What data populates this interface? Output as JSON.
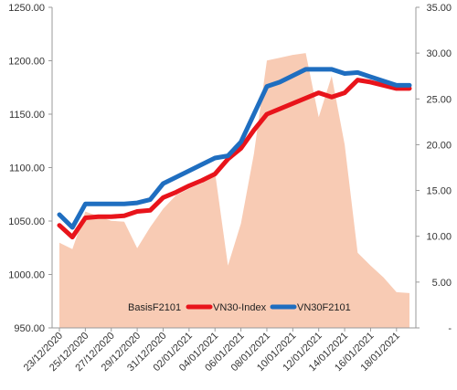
{
  "chart_data": {
    "type": "line",
    "title": "",
    "xlabel": "",
    "ylabel_left": "",
    "ylabel_right": "",
    "x": [
      "23/12/2020",
      "24/12/2020",
      "25/12/2020",
      "26/12/2020",
      "27/12/2020",
      "28/12/2020",
      "29/12/2020",
      "30/12/2020",
      "31/12/2020",
      "01/01/2021",
      "02/01/2021",
      "03/01/2021",
      "04/01/2021",
      "05/01/2021",
      "06/01/2021",
      "07/01/2021",
      "08/01/2021",
      "09/01/2021",
      "10/01/2021",
      "11/01/2021",
      "12/01/2021",
      "13/01/2021",
      "14/01/2021",
      "15/01/2021",
      "16/01/2021",
      "17/01/2021",
      "18/01/2021",
      "19/01/2021"
    ],
    "x_tick_labels": [
      "23/12/2020",
      "25/12/2020",
      "27/12/2020",
      "29/12/2020",
      "31/12/2020",
      "02/01/2021",
      "04/01/2021",
      "06/01/2021",
      "08/01/2021",
      "10/01/2021",
      "12/01/2021",
      "14/01/2021",
      "16/01/2021",
      "18/01/2021"
    ],
    "left_axis": {
      "ylim": [
        950,
        1250
      ],
      "ticks": [
        "950.00",
        "1000.00",
        "1050.00",
        "1100.00",
        "1150.00",
        "1200.00",
        "1250.00"
      ]
    },
    "right_axis": {
      "ylim": [
        0,
        35
      ],
      "ticks": [
        "-",
        "5.00",
        "10.00",
        "15.00",
        "20.00",
        "25.00",
        "30.00",
        "35.00"
      ]
    },
    "series": [
      {
        "name": "BasisF2101",
        "kind": "area",
        "axis": "right",
        "color": "#F8CBB4",
        "values": [
          9.3,
          8.6,
          12.7,
          12.2,
          11.7,
          11.6,
          8.7,
          11.0,
          13.0,
          14.5,
          15.2,
          15.8,
          17.0,
          6.8,
          11.4,
          19.0,
          29.2,
          29.5,
          29.8,
          30.0,
          23.0,
          27.5,
          20.0,
          8.2,
          6.8,
          5.5,
          3.9,
          3.8
        ]
      },
      {
        "name": "VN30-Index",
        "kind": "line",
        "axis": "left",
        "color": "#E8141B",
        "values": [
          1046,
          1035,
          1053,
          1054,
          1054,
          1055,
          1059,
          1060,
          1072,
          1077,
          1083,
          1088,
          1094,
          1108,
          1118,
          1135,
          1150,
          1155,
          1160,
          1165,
          1170,
          1166,
          1170,
          1182,
          1180,
          1177,
          1174,
          1174
        ]
      },
      {
        "name": "VN30F2101",
        "kind": "line",
        "axis": "left",
        "color": "#1F6EC0",
        "values": [
          1056,
          1044,
          1066,
          1066,
          1066,
          1066,
          1067,
          1070,
          1085,
          1091,
          1097,
          1103,
          1109,
          1111,
          1124,
          1150,
          1176,
          1180,
          1186,
          1192,
          1192,
          1192,
          1188,
          1189,
          1185,
          1181,
          1177,
          1177
        ]
      }
    ],
    "legend": {
      "placement": "bottom-center",
      "entries": [
        "BasisF2101",
        "VN30-Index",
        "VN30F2101"
      ]
    },
    "grid": false
  }
}
